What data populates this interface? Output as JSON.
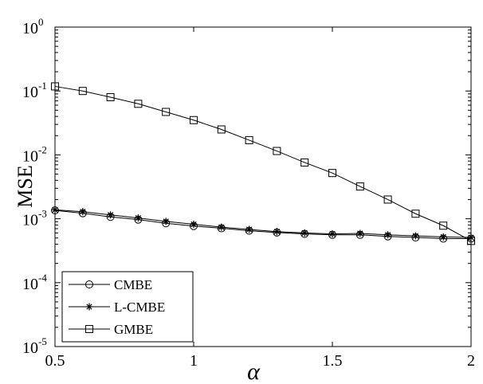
{
  "chart_data": {
    "type": "line",
    "xlabel": "α",
    "ylabel": "MSE",
    "xlim": [
      0.5,
      2
    ],
    "ylim": [
      1e-05,
      1
    ],
    "yscale": "log",
    "grid": false,
    "legend_position": "bottom-left",
    "x_ticks": [
      {
        "value": 0.5,
        "label": "0.5"
      },
      {
        "value": 1,
        "label": "1"
      },
      {
        "value": 1.5,
        "label": "1.5"
      },
      {
        "value": 2,
        "label": "2"
      }
    ],
    "y_ticks": [
      {
        "value": 1e-05,
        "base": "10",
        "exp": "-5"
      },
      {
        "value": 0.0001,
        "base": "10",
        "exp": "-4"
      },
      {
        "value": 0.001,
        "base": "10",
        "exp": "-3"
      },
      {
        "value": 0.01,
        "base": "10",
        "exp": "-2"
      },
      {
        "value": 0.1,
        "base": "10",
        "exp": "-1"
      },
      {
        "value": 1,
        "base": "10",
        "exp": "0"
      }
    ],
    "x": [
      0.5,
      0.6,
      0.7,
      0.8,
      0.9,
      1.0,
      1.1,
      1.2,
      1.3,
      1.4,
      1.5,
      1.6,
      1.7,
      1.8,
      1.9,
      2.0
    ],
    "series": [
      {
        "name": "CMBE",
        "marker": "circle",
        "values": [
          0.00135,
          0.00122,
          0.00107,
          0.00097,
          0.00085,
          0.00077,
          0.00071,
          0.00065,
          0.00061,
          0.00058,
          0.00056,
          0.00056,
          0.00053,
          0.00051,
          0.00049,
          0.00049
        ]
      },
      {
        "name": "L-CMBE",
        "marker": "star",
        "values": [
          0.00138,
          0.00129,
          0.00115,
          0.00103,
          0.00091,
          0.00082,
          0.00074,
          0.00068,
          0.00063,
          0.0006,
          0.00058,
          0.00059,
          0.00056,
          0.00054,
          0.00052,
          0.00051
        ]
      },
      {
        "name": "GMBE",
        "marker": "square",
        "values": [
          0.118,
          0.1,
          0.08,
          0.063,
          0.047,
          0.035,
          0.025,
          0.017,
          0.0115,
          0.0076,
          0.0052,
          0.0032,
          0.002,
          0.0012,
          0.00078,
          0.00045
        ]
      }
    ]
  }
}
